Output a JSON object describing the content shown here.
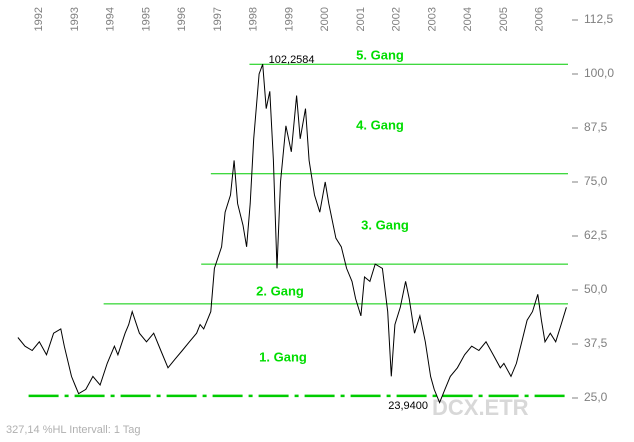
{
  "chart_data": {
    "type": "line",
    "color": "#000000",
    "x": [
      1991.4,
      1991.6,
      1991.8,
      1992.0,
      1992.2,
      1992.4,
      1992.6,
      1992.7,
      1992.9,
      1993.0,
      1993.1,
      1993.3,
      1993.5,
      1993.7,
      1993.9,
      1994.1,
      1994.2,
      1994.4,
      1994.5,
      1994.6,
      1994.8,
      1995.0,
      1995.2,
      1995.4,
      1995.6,
      1995.8,
      1996.0,
      1996.2,
      1996.4,
      1996.5,
      1996.6,
      1996.8,
      1996.9,
      1997.1,
      1997.2,
      1997.35,
      1997.45,
      1997.55,
      1997.7,
      1997.8,
      1997.9,
      1998.0,
      1998.15,
      1998.25,
      1998.35,
      1998.45,
      1998.55,
      1998.65,
      1998.75,
      1998.9,
      1999.05,
      1999.2,
      1999.3,
      1999.45,
      1999.55,
      1999.7,
      1999.85,
      2000.0,
      2000.1,
      2000.3,
      2000.45,
      2000.6,
      2000.75,
      2000.85,
      2001.0,
      2001.1,
      2001.25,
      2001.4,
      2001.6,
      2001.75,
      2001.85,
      2001.95,
      2002.1,
      2002.25,
      2002.35,
      2002.5,
      2002.65,
      2002.8,
      2002.95,
      2003.05,
      2003.2,
      2003.35,
      2003.5,
      2003.7,
      2003.9,
      2004.1,
      2004.3,
      2004.5,
      2004.7,
      2004.9,
      2005.0,
      2005.2,
      2005.35,
      2005.5,
      2005.65,
      2005.8,
      2005.95,
      2006.05,
      2006.15,
      2006.3,
      2006.45,
      2006.6,
      2006.75
    ],
    "values": [
      39,
      37,
      36,
      38,
      35,
      40,
      41,
      37,
      30,
      28,
      26,
      27,
      30,
      28,
      33,
      37,
      35,
      40,
      42,
      45,
      40,
      38,
      40,
      36,
      32,
      34,
      36,
      38,
      40,
      42,
      41,
      45,
      55,
      60,
      68,
      72,
      80,
      70,
      65,
      60,
      70,
      85,
      100,
      102.2584,
      92,
      96,
      80,
      55,
      75,
      88,
      82,
      95,
      85,
      92,
      80,
      72,
      68,
      75,
      70,
      62,
      60,
      55,
      52,
      48,
      44,
      53,
      52,
      56,
      55,
      45,
      30,
      42,
      46,
      52,
      48,
      40,
      44,
      38,
      30,
      27,
      23.94,
      27,
      30,
      32,
      35,
      37,
      36,
      38,
      35,
      32,
      33,
      30,
      33,
      38,
      43,
      45,
      49,
      43,
      38,
      40,
      38,
      42,
      46
    ],
    "xlim": [
      1990.9,
      2006.85
    ],
    "xticks": [
      1992,
      1993,
      1994,
      1995,
      1996,
      1997,
      1998,
      1999,
      2000,
      2001,
      2002,
      2003,
      2004,
      2005,
      2006
    ],
    "ylim": [
      20,
      115
    ],
    "yticks": [
      {
        "value": 25,
        "label": "25,0"
      },
      {
        "value": 37.5,
        "label": "37,5"
      },
      {
        "value": 50,
        "label": "50,0"
      },
      {
        "value": 62.5,
        "label": "62,5"
      },
      {
        "value": 75,
        "label": "75,0"
      },
      {
        "value": 87.5,
        "label": "87,5"
      },
      {
        "value": 100,
        "label": "100,0"
      },
      {
        "value": 112.5,
        "label": "112,5"
      }
    ],
    "levels": [
      {
        "value": 102.2584,
        "from": 1997.88,
        "color": "#00cc00"
      },
      {
        "value": 76.9,
        "from": 1996.8,
        "color": "#00cc00"
      },
      {
        "value": 56.0,
        "from": 1996.53,
        "color": "#00cc00"
      },
      {
        "value": 46.8,
        "from": 1993.8,
        "color": "#00cc00"
      },
      {
        "value": 25.5,
        "from": 1991.7,
        "color": "#00cc00",
        "dashed": true
      }
    ],
    "gang_labels": [
      "5. Gang",
      "4. Gang",
      "3. Gang",
      "2. Gang",
      "1. Gang"
    ],
    "extremes": [
      {
        "value": 102.2584,
        "label": "102,2584"
      },
      {
        "value": 23.94,
        "label": "23,9400"
      }
    ],
    "footer": "327,14 %HL    Intervall: 1 Tag",
    "symbol": "DCX.ETR"
  }
}
